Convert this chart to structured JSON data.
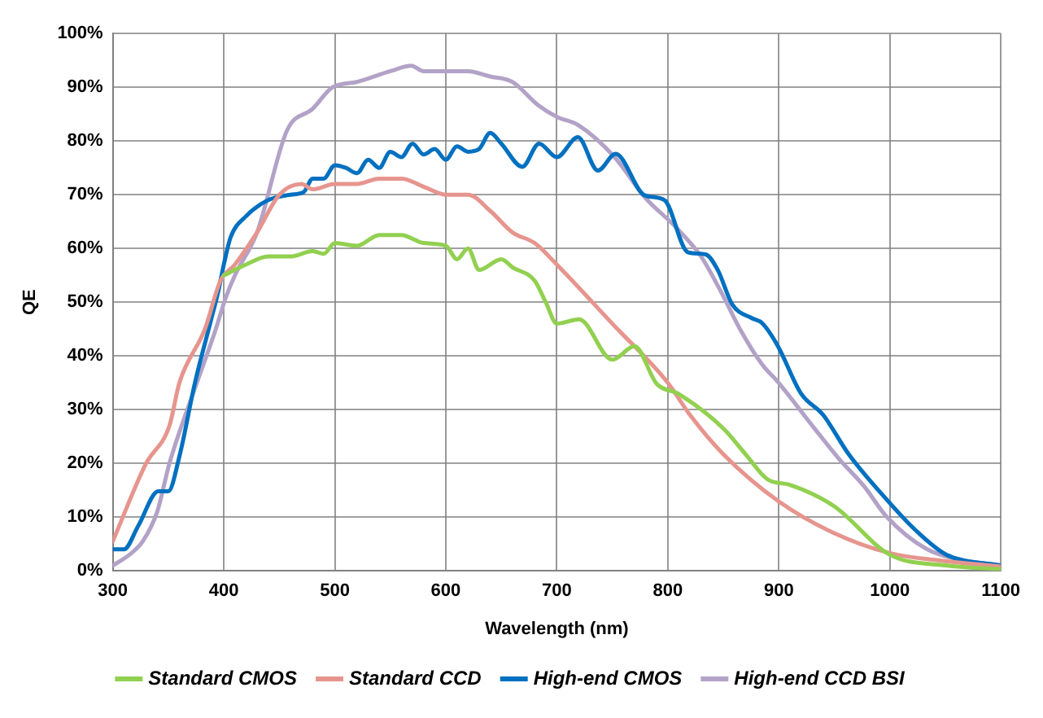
{
  "chart_data": {
    "type": "line",
    "xlabel": "Wavelength (nm)",
    "ylabel": "QE",
    "xlim": [
      300,
      1100
    ],
    "xticks": [
      300,
      400,
      500,
      600,
      700,
      800,
      900,
      1000,
      1100
    ],
    "ylim": [
      0,
      100
    ],
    "yticks": [
      {
        "value": 0,
        "label": "0%"
      },
      {
        "value": 10,
        "label": "10%"
      },
      {
        "value": 20,
        "label": "20%"
      },
      {
        "value": 30,
        "label": "30%"
      },
      {
        "value": 40,
        "label": "40%"
      },
      {
        "value": 50,
        "label": "50%"
      },
      {
        "value": 60,
        "label": "60%"
      },
      {
        "value": 70,
        "label": "70%"
      },
      {
        "value": 80,
        "label": "80%"
      },
      {
        "value": 90,
        "label": "90%"
      },
      {
        "value": 100,
        "label": "100%"
      }
    ],
    "grid": true,
    "legend": "bottom",
    "marker": "none",
    "line_style": "solid",
    "series": [
      {
        "name": "Standard CMOS",
        "color": "#92d050",
        "x": [
          400,
          420,
          440,
          460,
          480,
          490,
          500,
          520,
          540,
          560,
          580,
          600,
          610,
          620,
          630,
          650,
          660,
          680,
          690,
          700,
          720,
          750,
          770,
          790,
          810,
          850,
          870,
          890,
          910,
          950,
          1000,
          1050,
          1100
        ],
        "values": [
          55,
          57,
          58.5,
          58.5,
          59.5,
          59,
          61,
          60.5,
          62.5,
          62.5,
          61,
          60.5,
          58,
          60,
          56,
          58,
          56.5,
          54,
          50,
          46,
          46.8,
          39.3,
          41.8,
          34.8,
          32.9,
          26.5,
          21.7,
          17,
          16,
          12,
          3,
          1,
          0.3
        ]
      },
      {
        "name": "Standard CCD",
        "color": "#e6958e",
        "x": [
          300,
          330,
          351,
          360,
          383,
          397,
          410,
          430,
          450,
          470,
          480,
          500,
          520,
          540,
          560,
          580,
          600,
          620,
          640,
          660,
          680,
          700,
          750,
          800,
          820,
          850,
          900,
          950,
          1000,
          1050,
          1100
        ],
        "values": [
          5.5,
          20,
          27,
          35,
          45,
          54,
          57,
          63,
          70,
          72,
          71,
          72,
          72,
          73,
          73,
          71.5,
          70,
          70,
          67,
          63,
          61,
          57,
          46,
          35,
          29,
          21.7,
          12.9,
          7,
          3.3,
          1.8,
          0.8
        ]
      },
      {
        "name": "High-end CMOS",
        "color": "#0070c0",
        "x": [
          300,
          310,
          323,
          341,
          350,
          360,
          374,
          388,
          395,
          400,
          406,
          420,
          440,
          460,
          472,
          480,
          490,
          500,
          510,
          520,
          530,
          540,
          550,
          560,
          570,
          580,
          590,
          600,
          610,
          620,
          630,
          640,
          650,
          669,
          684,
          700,
          719,
          737,
          753,
          779,
          797,
          818,
          834,
          845,
          858,
          876,
          885,
          899,
          920,
          940,
          963,
          997,
          1023,
          1051,
          1100
        ],
        "values": [
          4,
          4,
          8.4,
          14.8,
          14.8,
          21.3,
          35,
          46.3,
          52,
          57,
          62,
          66,
          69,
          70,
          70.5,
          73,
          73,
          75.5,
          75,
          74,
          76.5,
          75,
          78,
          77,
          79.5,
          77.5,
          78.5,
          76.5,
          79,
          78,
          78.5,
          81.5,
          79.5,
          75.2,
          79.5,
          77,
          80.7,
          74.5,
          77.6,
          69.9,
          69,
          59.3,
          58.9,
          56,
          49.6,
          47,
          46.1,
          41.9,
          33,
          29,
          21.7,
          13.3,
          7.6,
          3,
          1
        ]
      },
      {
        "name": "High-end CCD BSI",
        "color": "#b3a2c7",
        "x": [
          300,
          315,
          327,
          340,
          351,
          374,
          392,
          402,
          410,
          430,
          457,
          480,
          498,
          520,
          550,
          569,
          580,
          620,
          640,
          660,
          683,
          700,
          719,
          752,
          779,
          807,
          830,
          848,
          865,
          885,
          899,
          931,
          954,
          977,
          997,
          1032,
          1065,
          1100
        ],
        "values": [
          1,
          3,
          5.5,
          11,
          20,
          34,
          44.5,
          51,
          55,
          63,
          82,
          86,
          90,
          91,
          93,
          94,
          93,
          93,
          92,
          91,
          86.7,
          84.5,
          83,
          77,
          69.6,
          64,
          58.5,
          51.9,
          45,
          38.4,
          35.2,
          26.8,
          20.9,
          15.7,
          10.1,
          4.2,
          2,
          1
        ]
      }
    ]
  }
}
